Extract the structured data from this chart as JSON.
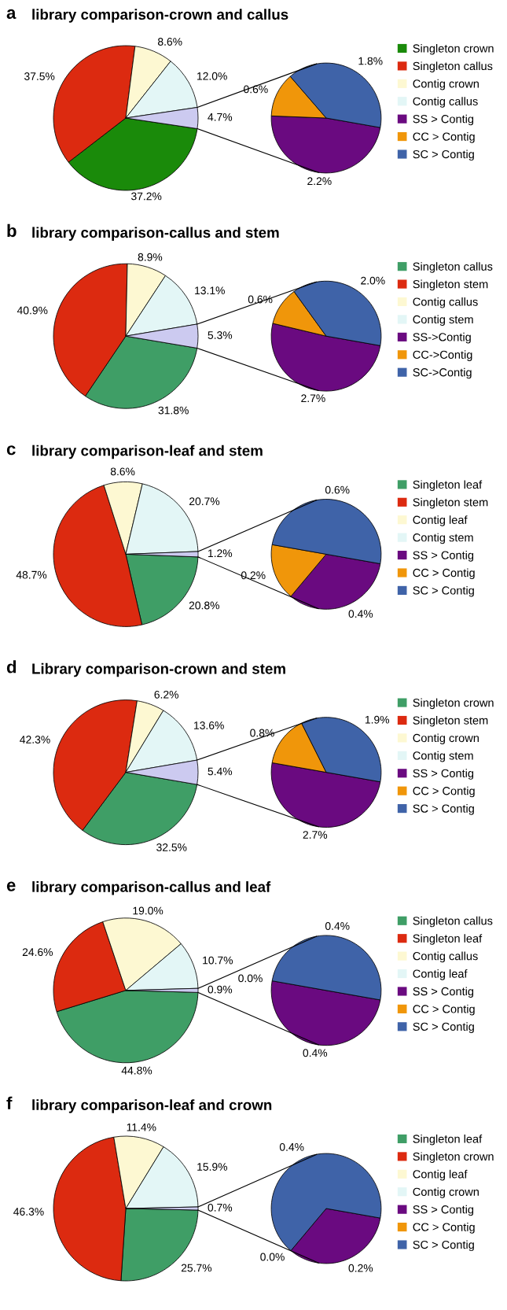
{
  "chart_data": [
    {
      "type": "pie",
      "title": "library comparison-crown and callus",
      "annotations": [
        "a"
      ],
      "categories": [
        "Singleton crown",
        "Singleton callus",
        "Contig crown",
        "Contig callus",
        null
      ],
      "values": [
        37.2,
        37.5,
        8.6,
        12.0,
        4.7
      ],
      "value_labels": [
        "37.2%",
        "37.5%",
        "8.6%",
        "12.0%",
        "4.7%"
      ],
      "colors": [
        "#1a8a0a",
        "#dc2a10",
        "#fdf8d2",
        "#e3f6f6",
        "#cccaf0"
      ],
      "legend": "right"
    },
    {
      "type": "pie",
      "categories": [
        "SS > Contig",
        "CC > Contig",
        "SC > Contig"
      ],
      "values": [
        2.2,
        0.6,
        1.8
      ],
      "value_labels": [
        "2.2%",
        "0.6%",
        "1.8%"
      ],
      "colors": [
        "#6a0a80",
        "#f0960a",
        "#3f63a8"
      ],
      "legend": "right"
    },
    {
      "type": "pie",
      "title": "library comparison-callus and stem",
      "annotations": [
        "b"
      ],
      "categories": [
        "Singleton callus",
        "Singleton stem",
        "Contig callus",
        "Contig stem",
        null
      ],
      "values": [
        31.8,
        40.9,
        8.9,
        13.1,
        5.3
      ],
      "value_labels": [
        "31.8%",
        "40.9%",
        "8.9%",
        "13.1%",
        "5.3%"
      ],
      "colors": [
        "#3f9e66",
        "#dc2a10",
        "#fdf8d2",
        "#e3f6f6",
        "#cccaf0"
      ],
      "legend": "right"
    },
    {
      "type": "pie",
      "categories": [
        "SS->Contig",
        "CC->Contig",
        "SC->Contig"
      ],
      "values": [
        2.7,
        0.6,
        2.0
      ],
      "value_labels": [
        "2.7%",
        "0.6%",
        "2.0%"
      ],
      "colors": [
        "#6a0a80",
        "#f0960a",
        "#3f63a8"
      ],
      "legend": "right"
    },
    {
      "type": "pie",
      "title": "library comparison-leaf and stem",
      "annotations": [
        "c"
      ],
      "categories": [
        "Singleton leaf",
        "Singleton stem",
        "Contig leaf",
        "Contig stem",
        null
      ],
      "values": [
        20.8,
        48.7,
        8.6,
        20.7,
        1.2
      ],
      "value_labels": [
        "20.8%",
        "48.7%",
        "8.6%",
        "20.7%",
        "1.2%"
      ],
      "colors": [
        "#3f9e66",
        "#dc2a10",
        "#fdf8d2",
        "#e3f6f6",
        "#cccaf0"
      ],
      "legend": "right"
    },
    {
      "type": "pie",
      "categories": [
        "SS > Contig",
        "CC > Contig",
        "SC > Contig"
      ],
      "values": [
        0.4,
        0.2,
        0.6
      ],
      "value_labels": [
        "0.4%",
        "0.2%",
        "0.6%"
      ],
      "colors": [
        "#6a0a80",
        "#f0960a",
        "#3f63a8"
      ],
      "legend": "right"
    },
    {
      "type": "pie",
      "title": "Library comparison-crown and stem",
      "annotations": [
        "d"
      ],
      "categories": [
        "Singleton crown",
        "Singleton stem",
        "Contig crown",
        "Contig stem",
        null
      ],
      "values": [
        32.5,
        42.3,
        6.2,
        13.6,
        5.4
      ],
      "value_labels": [
        "32.5%",
        "42.3%",
        "6.2%",
        "13.6%",
        "5.4%"
      ],
      "colors": [
        "#3f9e66",
        "#dc2a10",
        "#fdf8d2",
        "#e3f6f6",
        "#cccaf0"
      ],
      "legend": "right"
    },
    {
      "type": "pie",
      "categories": [
        "SS > Contig",
        "CC > Contig",
        "SC > Contig"
      ],
      "values": [
        2.7,
        0.8,
        1.9
      ],
      "value_labels": [
        "2.7%",
        "0.8%",
        "1.9%"
      ],
      "colors": [
        "#6a0a80",
        "#f0960a",
        "#3f63a8"
      ],
      "legend": "right"
    },
    {
      "type": "pie",
      "title": "library comparison-callus and leaf",
      "annotations": [
        "e"
      ],
      "categories": [
        "Singleton callus",
        "Singleton leaf",
        "Contig callus",
        "Contig leaf",
        null
      ],
      "values": [
        44.8,
        24.6,
        19.0,
        10.7,
        0.9
      ],
      "value_labels": [
        "44.8%",
        "24.6%",
        "19.0%",
        "10.7%",
        "0.9%"
      ],
      "colors": [
        "#3f9e66",
        "#dc2a10",
        "#fdf8d2",
        "#e3f6f6",
        "#cccaf0"
      ],
      "legend": "right"
    },
    {
      "type": "pie",
      "categories": [
        "SS > Contig",
        "CC > Contig",
        "SC > Contig"
      ],
      "values": [
        0.4,
        0.0,
        0.4
      ],
      "value_labels": [
        "0.4%",
        "0.0%",
        "0.4%"
      ],
      "colors": [
        "#6a0a80",
        "#f0960a",
        "#3f63a8"
      ],
      "legend": "right"
    },
    {
      "type": "pie",
      "title": "library comparison-leaf and crown",
      "annotations": [
        "f"
      ],
      "categories": [
        "Singleton leaf",
        "Singleton crown",
        "Contig leaf",
        "Contig crown",
        null
      ],
      "values": [
        25.7,
        46.3,
        11.4,
        15.9,
        0.7
      ],
      "value_labels": [
        "25.7%",
        "46.3%",
        "11.4%",
        "15.9%",
        "0.7%"
      ],
      "colors": [
        "#3f9e66",
        "#dc2a10",
        "#fdf8d2",
        "#e3f6f6",
        "#cccaf0"
      ],
      "legend": "right"
    },
    {
      "type": "pie",
      "categories": [
        "SS > Contig",
        "CC > Contig",
        "SC > Contig"
      ],
      "values": [
        0.2,
        0.0,
        0.4
      ],
      "value_labels": [
        "0.2%",
        "0.0%",
        "0.4%"
      ],
      "colors": [
        "#6a0a80",
        "#f0960a",
        "#3f63a8"
      ],
      "legend": "right"
    }
  ]
}
